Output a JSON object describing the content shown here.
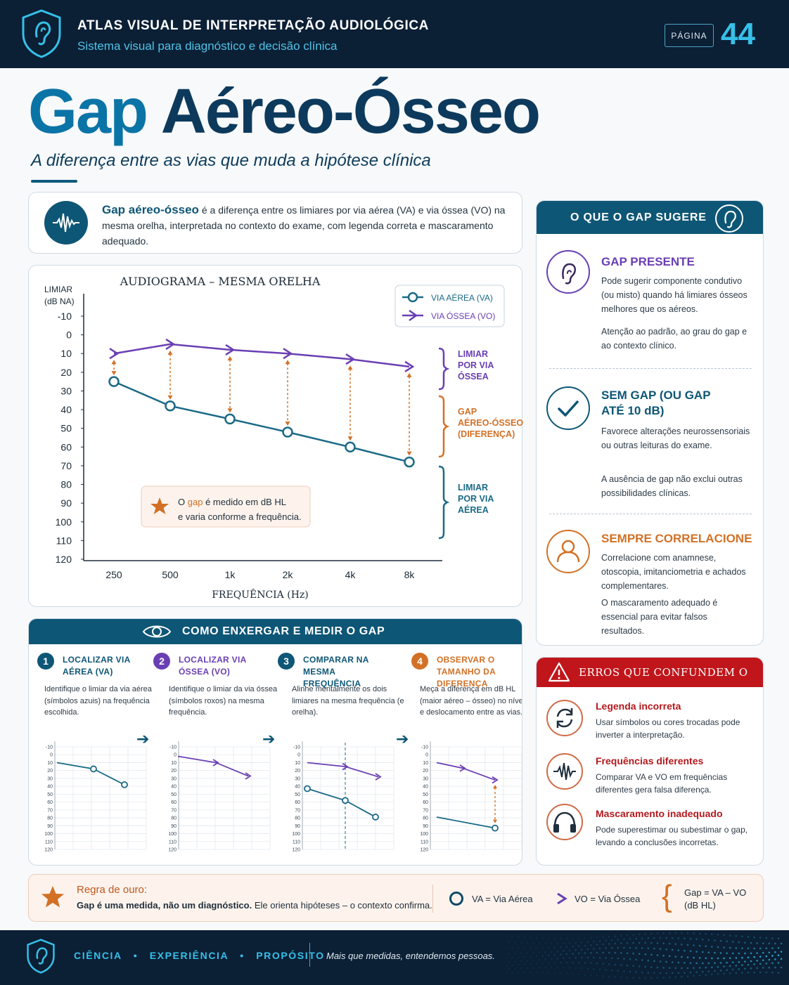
{
  "header": {
    "title": "ATLAS VISUAL DE INTERPRETAÇÃO AUDIOLÓGICA",
    "subtitle": "Sistema visual para diagnóstico e decisão clínica",
    "page_label": "PÁGINA",
    "page_number": "44"
  },
  "hero": {
    "title_a": "Gap",
    "title_b": "Aéreo-Ósseo",
    "subtitle": "A diferença entre as vias que muda a hipótese clínica"
  },
  "definition": {
    "term": "Gap aéreo-ósseo",
    "text": "é a diferença entre os limiares por via aérea (VA) e via óssea (VO) na mesma orelha, interpretada no contexto do exame, com legenda correta e mascaramento adequado."
  },
  "chart_data": {
    "type": "line",
    "title": "AUDIOGRAMA – MESMA ORELHA",
    "ylabel": "LIMIAR (dB NA)",
    "xlabel": "FREQUÊNCIA (Hz)",
    "categories": [
      "250",
      "500",
      "1k",
      "2k",
      "4k",
      "8k"
    ],
    "y_ticks": [
      "-10",
      "0",
      "10",
      "20",
      "30",
      "40",
      "50",
      "60",
      "70",
      "80",
      "90",
      "100",
      "110",
      "120"
    ],
    "ylim": [
      -10,
      120
    ],
    "y_inverted": true,
    "series": [
      {
        "name": "VIA AÉREA (VA)",
        "marker": "circle",
        "color": "#1b6a86",
        "values": [
          25,
          38,
          45,
          52,
          60,
          68
        ]
      },
      {
        "name": "VIA ÓSSEA (VO)",
        "marker": "arrow",
        "color": "#6a3fb3",
        "values": [
          10,
          5,
          8,
          10,
          13,
          17
        ]
      }
    ],
    "brackets": [
      {
        "label": "LIMIAR POR VIA ÓSSEA",
        "color": "#6a3fb3"
      },
      {
        "label": "GAP AÉREO-ÓSSEO (DIFERENÇA)",
        "color": "#d27126"
      },
      {
        "label": "LIMIAR POR VIA AÉREA",
        "color": "#1b6a86"
      }
    ],
    "note_prefix": "O",
    "note_highlight": "gap",
    "note_line1_rest": "é medido em dB HL",
    "note_line2": "e varia conforme a frequência."
  },
  "suggest": {
    "header": "O QUE O GAP SUGERE",
    "items": [
      {
        "title_1": "GAP PRESENTE",
        "title_2": "",
        "p1": "Pode sugerir componente condutivo (ou misto) quando há limiares ósseos melhores que os aéreos.",
        "p2": "Atenção ao padrão, ao grau do gap e ao contexto clínico.",
        "color": "#6a3fb3"
      },
      {
        "title_1": "SEM GAP (OU GAP",
        "title_2": "ATÉ 10 dB)",
        "p1": "Favorece alterações neurossensoriais ou outras leituras do exame.",
        "p2": "A ausência de gap não exclui outras possibilidades clínicas.",
        "color": "#0e5676"
      },
      {
        "title_1": "SEMPRE CORRELACIONE",
        "title_2": "",
        "p1": "Correlacione com anamnese, otoscopia, imitanciometria e achados complementares.",
        "p2": "O mascaramento adequado é essencial para evitar falsos resultados.",
        "color": "#d27126"
      }
    ]
  },
  "how": {
    "header": "COMO ENXERGAR E MEDIR O GAP",
    "steps": [
      {
        "num": "1",
        "title": "LOCALIZAR VIA AÉREA (VA)",
        "desc": "Identifique o limiar da via aérea (símbolos azuis) na frequência escolhida.",
        "color": "#0e5676"
      },
      {
        "num": "2",
        "title": "LOCALIZAR VIA ÓSSEA (VO)",
        "desc": "Identifique o limiar da via óssea (símbolos roxos) na mesma frequência.",
        "color": "#6a3fb3"
      },
      {
        "num": "3",
        "title": "COMPARAR NA MESMA FREQUÊNCIA",
        "desc": "Alinhe mentalmente os dois limiares na mesma frequência (e orelha).",
        "color": "#0e5676"
      },
      {
        "num": "4",
        "title": "OBSERVAR O TAMANHO DA DIFERENÇA",
        "desc": "Meça a diferença em dB HL (maior aéreo – ósseo) no nível e deslocamento entre as vias.",
        "color": "#d27126"
      }
    ],
    "mini_ticks": [
      "-10",
      "0",
      "10",
      "20",
      "30",
      "40",
      "50",
      "60",
      "70",
      "80",
      "90",
      "100",
      "110",
      "120"
    ]
  },
  "errors": {
    "header": "ERROS QUE CONFUNDEM O GAP",
    "items": [
      {
        "title": "Legenda incorreta",
        "desc": "Usar símbolos ou cores trocadas pode inverter a interpretação.",
        "icon": "swap-icon"
      },
      {
        "title": "Frequências diferentes",
        "desc": "Comparar VA e VO em frequências diferentes gera falsa diferença.",
        "icon": "waveform-icon"
      },
      {
        "title": "Mascaramento inadequado",
        "desc": "Pode superestimar ou subestimar o gap, levando a conclusões incorretas.",
        "icon": "headphones-icon"
      }
    ]
  },
  "rule": {
    "title": "Regra de ouro:",
    "bold": "Gap é uma medida, não um diagnóstico.",
    "rest": " Ele orienta hipóteses – o contexto confirma.",
    "legend_va": "VA = Via Aérea",
    "legend_vo": "VO = Via Óssea",
    "formula_1": "Gap = VA – VO",
    "formula_2": "(dB HL)"
  },
  "footer": {
    "pillar_1": "CIÊNCIA",
    "pillar_2": "EXPERIÊNCIA",
    "pillar_3": "PROPÓSITO",
    "dot": "•",
    "tagline": "Mais que medidas, entendemos pessoas."
  }
}
